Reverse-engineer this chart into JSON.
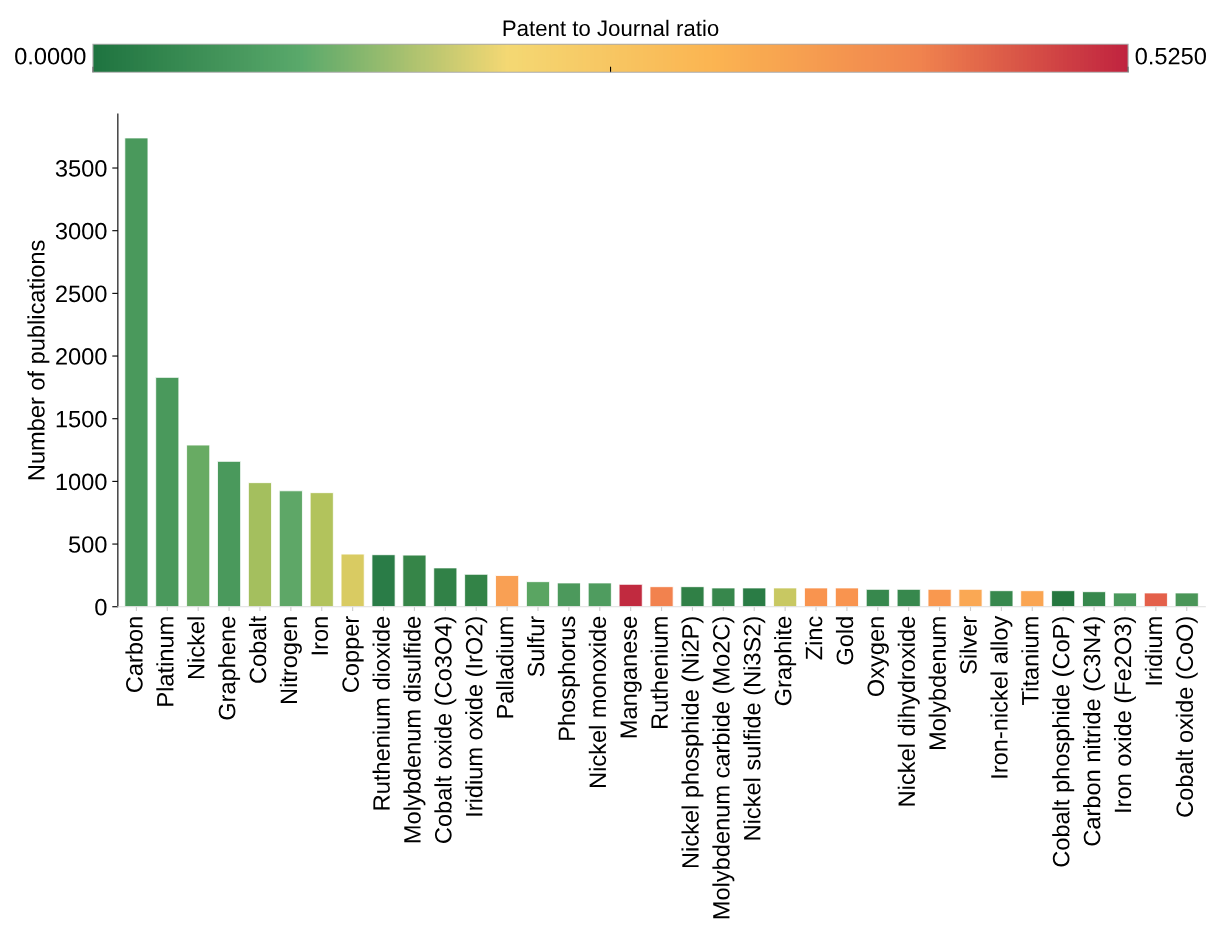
{
  "chart_data": {
    "type": "bar",
    "ylabel": "Number of publications",
    "clabel": "Patent to Journal ratio",
    "clim": [
      0,
      0.525
    ],
    "cticks": [
      {
        "value": 0,
        "label": "0.0000"
      },
      {
        "value": 0.2625,
        "label": null
      },
      {
        "value": 0.525,
        "label": "0.5250"
      }
    ],
    "categories": [
      "Carbon",
      "Platinum",
      "Nickel",
      "Graphene",
      "Cobalt",
      "Nitrogen",
      "Iron",
      "Copper",
      "Ruthenium dioxide",
      "Molybdenum disulfide",
      "Cobalt oxide (Co3O4)",
      "Iridium oxide (IrO2)",
      "Palladium",
      "Sulfur",
      "Phosphorus",
      "Nickel monoxide",
      "Manganese",
      "Ruthenium",
      "Nickel phosphide (Ni2P)",
      "Molybdenum carbide (Mo2C)",
      "Nickel sulfide (Ni3S2)",
      "Graphite",
      "Zinc",
      "Gold",
      "Oxygen",
      "Nickel dihydroxide",
      "Molybdenum",
      "Silver",
      "Iron-nickel alloy",
      "Titanium",
      "Cobalt phosphide (CoP)",
      "Carbon nitride (C3N4)",
      "Iron oxide (Fe2O3)",
      "Iridium",
      "Cobalt oxide (CoO)"
    ],
    "values": [
      3740,
      1830,
      1290,
      1160,
      990,
      925,
      910,
      420,
      415,
      412,
      310,
      259,
      249,
      200,
      190,
      190,
      179,
      160,
      160,
      150,
      150,
      150,
      150,
      150,
      139,
      139,
      139,
      139,
      128,
      128,
      128,
      120,
      110,
      110,
      110
    ],
    "colors": [
      "#4a995c",
      "#4a995c",
      "#68ab63",
      "#4a995c",
      "#a4bf5e",
      "#5ea767",
      "#b2c35c",
      "#d9cb62",
      "#2a7c47",
      "#368548",
      "#318147",
      "#338347",
      "#f9a054",
      "#5aa562",
      "#4c995c",
      "#4f9c5f",
      "#c12a3f",
      "#f2824e",
      "#308046",
      "#37874c",
      "#2a7c45",
      "#c8c862",
      "#f9944f",
      "#f9944f",
      "#37884d",
      "#37884d",
      "#f9984f",
      "#faa854",
      "#37884d",
      "#faa552",
      "#25773f",
      "#37884d",
      "#4a995c",
      "#e4604a",
      "#4a9658"
    ],
    "ylim": [
      0,
      3930
    ],
    "yticks": [
      0,
      500,
      1000,
      1500,
      2000,
      2500,
      3000,
      3500
    ],
    "grid": false,
    "legend": false
  }
}
